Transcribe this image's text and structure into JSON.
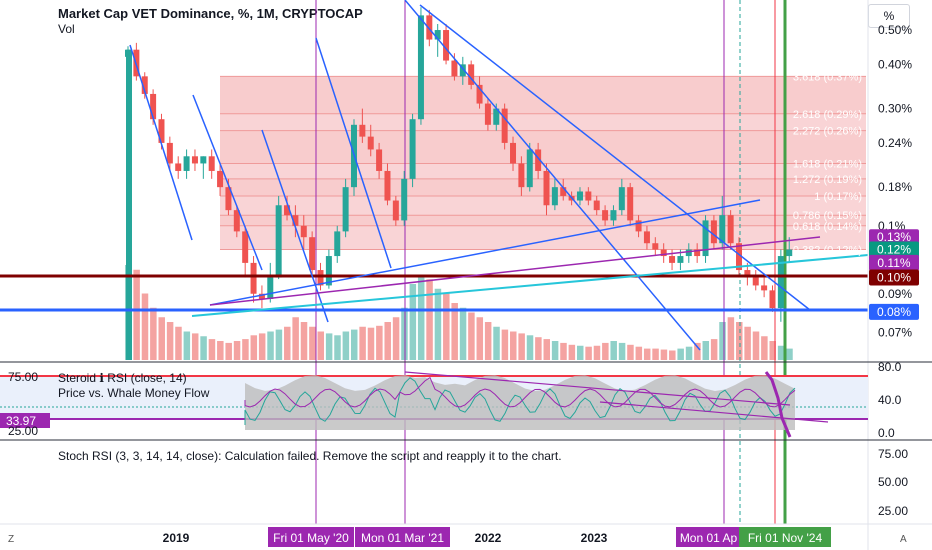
{
  "header": {
    "title": "Market Cap VET Dominance, %, 1M, CRYPTOCAP",
    "vol": "Vol",
    "percent_button": "%"
  },
  "price_axis": {
    "ticks": [
      "0.50%",
      "0.40%",
      "0.30%",
      "0.24%",
      "0.18%",
      "0.1%",
      "0.09%",
      "0.07%"
    ],
    "badges": [
      {
        "label": "0.13%",
        "color": "#9c27b0"
      },
      {
        "label": "0.12%",
        "color": "#089981"
      },
      {
        "label": "0.11%",
        "color": "#9c27b0"
      },
      {
        "label": "0.10%",
        "color": "#7f0000"
      },
      {
        "label": "0.08%",
        "color": "#2962ff"
      }
    ]
  },
  "fib_levels": [
    {
      "label": "3.618 (0.37%)",
      "value": 0.37
    },
    {
      "label": "2.618 (0.29%)",
      "value": 0.29
    },
    {
      "label": "2.272 (0.26%)",
      "value": 0.26
    },
    {
      "label": "1.618 (0.21%)",
      "value": 0.21
    },
    {
      "label": "1.272 (0.19%)",
      "value": 0.19
    },
    {
      "label": "1 (0.17%)",
      "value": 0.17
    },
    {
      "label": "0.786 (0.15%)",
      "value": 0.15
    },
    {
      "label": "0.618 (0.14%)",
      "value": 0.14
    },
    {
      "label": "0.382 (0.12%)",
      "value": 0.12
    }
  ],
  "indicator1": {
    "title": "Steroid ℹ RSI (close, 14)",
    "subtitle": "Price vs. Whale Money Flow",
    "left_labels": [
      "75.00",
      "33.97",
      "25.00"
    ],
    "right_ticks": [
      "80.0",
      "40.0",
      "0.0"
    ]
  },
  "indicator2": {
    "title": "Stoch RSI (3, 3, 14, 14, close): Calculation failed. Remove the script and reapply it to the chart.",
    "right_ticks": [
      "75.00",
      "50.00",
      "25.00"
    ]
  },
  "time_axis": {
    "ticks": [
      "2019",
      "2022",
      "2023"
    ],
    "markers": [
      {
        "label": "Fri 01 May '20",
        "color": "#9c27b0"
      },
      {
        "label": "Mon 01 Mar '21",
        "color": "#9c27b0"
      },
      {
        "label": "Mon 01 Ap",
        "color": "#9c27b0"
      },
      {
        "label": "Fri 01 Nov '24",
        "color": "#43a047"
      }
    ],
    "corner_left": "Z",
    "corner_right": "A"
  },
  "colors": {
    "up": "#26a69a",
    "down": "#ef5350",
    "fib_fill": "#f7c6c8",
    "trend_blue": "#2962ff",
    "trend_cyan": "#26c6da",
    "trend_purple": "#9c27b0",
    "support_red": "#7f0000"
  },
  "chart_data": {
    "type": "candlestick",
    "title": "Market Cap VET Dominance, %, 1M, CRYPTOCAP",
    "y_scale": "log",
    "yrange_pct": [
      0.055,
      0.58
    ],
    "candles": [
      {
        "o": 0.42,
        "h": 0.45,
        "l": 0.4,
        "c": 0.44
      },
      {
        "o": 0.44,
        "h": 0.46,
        "l": 0.36,
        "c": 0.37
      },
      {
        "o": 0.37,
        "h": 0.38,
        "l": 0.32,
        "c": 0.33
      },
      {
        "o": 0.33,
        "h": 0.34,
        "l": 0.27,
        "c": 0.28
      },
      {
        "o": 0.28,
        "h": 0.29,
        "l": 0.23,
        "c": 0.24
      },
      {
        "o": 0.24,
        "h": 0.25,
        "l": 0.2,
        "c": 0.21
      },
      {
        "o": 0.21,
        "h": 0.22,
        "l": 0.19,
        "c": 0.2
      },
      {
        "o": 0.2,
        "h": 0.23,
        "l": 0.19,
        "c": 0.22
      },
      {
        "o": 0.22,
        "h": 0.23,
        "l": 0.2,
        "c": 0.21
      },
      {
        "o": 0.21,
        "h": 0.22,
        "l": 0.19,
        "c": 0.22
      },
      {
        "o": 0.22,
        "h": 0.23,
        "l": 0.19,
        "c": 0.2
      },
      {
        "o": 0.2,
        "h": 0.21,
        "l": 0.17,
        "c": 0.18
      },
      {
        "o": 0.18,
        "h": 0.19,
        "l": 0.15,
        "c": 0.155
      },
      {
        "o": 0.155,
        "h": 0.16,
        "l": 0.13,
        "c": 0.135
      },
      {
        "o": 0.135,
        "h": 0.14,
        "l": 0.1,
        "c": 0.11
      },
      {
        "o": 0.11,
        "h": 0.115,
        "l": 0.085,
        "c": 0.09
      },
      {
        "o": 0.09,
        "h": 0.095,
        "l": 0.082,
        "c": 0.087
      },
      {
        "o": 0.087,
        "h": 0.11,
        "l": 0.085,
        "c": 0.1
      },
      {
        "o": 0.1,
        "h": 0.17,
        "l": 0.099,
        "c": 0.16
      },
      {
        "o": 0.16,
        "h": 0.17,
        "l": 0.145,
        "c": 0.15
      },
      {
        "o": 0.15,
        "h": 0.16,
        "l": 0.13,
        "c": 0.14
      },
      {
        "o": 0.14,
        "h": 0.15,
        "l": 0.12,
        "c": 0.13
      },
      {
        "o": 0.13,
        "h": 0.135,
        "l": 0.1,
        "c": 0.105
      },
      {
        "o": 0.105,
        "h": 0.11,
        "l": 0.092,
        "c": 0.095
      },
      {
        "o": 0.095,
        "h": 0.12,
        "l": 0.093,
        "c": 0.115
      },
      {
        "o": 0.115,
        "h": 0.14,
        "l": 0.11,
        "c": 0.135
      },
      {
        "o": 0.135,
        "h": 0.19,
        "l": 0.13,
        "c": 0.18
      },
      {
        "o": 0.18,
        "h": 0.28,
        "l": 0.17,
        "c": 0.27
      },
      {
        "o": 0.27,
        "h": 0.3,
        "l": 0.24,
        "c": 0.25
      },
      {
        "o": 0.25,
        "h": 0.27,
        "l": 0.22,
        "c": 0.23
      },
      {
        "o": 0.23,
        "h": 0.24,
        "l": 0.19,
        "c": 0.2
      },
      {
        "o": 0.2,
        "h": 0.21,
        "l": 0.16,
        "c": 0.165
      },
      {
        "o": 0.165,
        "h": 0.17,
        "l": 0.14,
        "c": 0.145
      },
      {
        "o": 0.145,
        "h": 0.2,
        "l": 0.14,
        "c": 0.19
      },
      {
        "o": 0.19,
        "h": 0.29,
        "l": 0.18,
        "c": 0.28
      },
      {
        "o": 0.28,
        "h": 0.58,
        "l": 0.27,
        "c": 0.55
      },
      {
        "o": 0.55,
        "h": 0.57,
        "l": 0.45,
        "c": 0.47
      },
      {
        "o": 0.47,
        "h": 0.52,
        "l": 0.42,
        "c": 0.5
      },
      {
        "o": 0.5,
        "h": 0.52,
        "l": 0.4,
        "c": 0.41
      },
      {
        "o": 0.41,
        "h": 0.43,
        "l": 0.36,
        "c": 0.37
      },
      {
        "o": 0.37,
        "h": 0.42,
        "l": 0.35,
        "c": 0.4
      },
      {
        "o": 0.4,
        "h": 0.41,
        "l": 0.34,
        "c": 0.35
      },
      {
        "o": 0.35,
        "h": 0.37,
        "l": 0.3,
        "c": 0.31
      },
      {
        "o": 0.31,
        "h": 0.32,
        "l": 0.26,
        "c": 0.27
      },
      {
        "o": 0.27,
        "h": 0.31,
        "l": 0.26,
        "c": 0.3
      },
      {
        "o": 0.3,
        "h": 0.31,
        "l": 0.23,
        "c": 0.24
      },
      {
        "o": 0.24,
        "h": 0.25,
        "l": 0.2,
        "c": 0.21
      },
      {
        "o": 0.21,
        "h": 0.22,
        "l": 0.17,
        "c": 0.18
      },
      {
        "o": 0.18,
        "h": 0.24,
        "l": 0.175,
        "c": 0.23
      },
      {
        "o": 0.23,
        "h": 0.24,
        "l": 0.19,
        "c": 0.2
      },
      {
        "o": 0.2,
        "h": 0.21,
        "l": 0.15,
        "c": 0.16
      },
      {
        "o": 0.16,
        "h": 0.19,
        "l": 0.155,
        "c": 0.18
      },
      {
        "o": 0.18,
        "h": 0.19,
        "l": 0.165,
        "c": 0.17
      },
      {
        "o": 0.17,
        "h": 0.175,
        "l": 0.16,
        "c": 0.165
      },
      {
        "o": 0.165,
        "h": 0.18,
        "l": 0.16,
        "c": 0.175
      },
      {
        "o": 0.175,
        "h": 0.18,
        "l": 0.16,
        "c": 0.165
      },
      {
        "o": 0.165,
        "h": 0.17,
        "l": 0.15,
        "c": 0.155
      },
      {
        "o": 0.155,
        "h": 0.16,
        "l": 0.14,
        "c": 0.145
      },
      {
        "o": 0.145,
        "h": 0.16,
        "l": 0.14,
        "c": 0.155
      },
      {
        "o": 0.155,
        "h": 0.19,
        "l": 0.15,
        "c": 0.18
      },
      {
        "o": 0.18,
        "h": 0.185,
        "l": 0.14,
        "c": 0.145
      },
      {
        "o": 0.145,
        "h": 0.15,
        "l": 0.13,
        "c": 0.135
      },
      {
        "o": 0.135,
        "h": 0.14,
        "l": 0.12,
        "c": 0.125
      },
      {
        "o": 0.125,
        "h": 0.13,
        "l": 0.115,
        "c": 0.12
      },
      {
        "o": 0.12,
        "h": 0.125,
        "l": 0.11,
        "c": 0.115
      },
      {
        "o": 0.115,
        "h": 0.12,
        "l": 0.105,
        "c": 0.11
      },
      {
        "o": 0.11,
        "h": 0.12,
        "l": 0.105,
        "c": 0.115
      },
      {
        "o": 0.115,
        "h": 0.125,
        "l": 0.11,
        "c": 0.12
      },
      {
        "o": 0.12,
        "h": 0.125,
        "l": 0.11,
        "c": 0.115
      },
      {
        "o": 0.115,
        "h": 0.15,
        "l": 0.11,
        "c": 0.145
      },
      {
        "o": 0.145,
        "h": 0.15,
        "l": 0.12,
        "c": 0.125
      },
      {
        "o": 0.125,
        "h": 0.17,
        "l": 0.12,
        "c": 0.15
      },
      {
        "o": 0.15,
        "h": 0.155,
        "l": 0.12,
        "c": 0.125
      },
      {
        "o": 0.125,
        "h": 0.13,
        "l": 0.1,
        "c": 0.105
      },
      {
        "o": 0.105,
        "h": 0.11,
        "l": 0.095,
        "c": 0.1
      },
      {
        "o": 0.1,
        "h": 0.105,
        "l": 0.092,
        "c": 0.095
      },
      {
        "o": 0.095,
        "h": 0.1,
        "l": 0.088,
        "c": 0.092
      },
      {
        "o": 0.092,
        "h": 0.095,
        "l": 0.08,
        "c": 0.082
      },
      {
        "o": 0.082,
        "h": 0.12,
        "l": 0.075,
        "c": 0.115
      },
      {
        "o": 0.115,
        "h": 0.13,
        "l": 0.11,
        "c": 0.12
      }
    ],
    "volume": [
      1.0,
      0.95,
      0.7,
      0.55,
      0.45,
      0.4,
      0.35,
      0.3,
      0.28,
      0.25,
      0.22,
      0.2,
      0.18,
      0.2,
      0.22,
      0.26,
      0.28,
      0.3,
      0.32,
      0.35,
      0.45,
      0.4,
      0.35,
      0.3,
      0.28,
      0.26,
      0.3,
      0.32,
      0.35,
      0.34,
      0.36,
      0.4,
      0.45,
      0.55,
      0.8,
      0.9,
      0.85,
      0.75,
      0.7,
      0.6,
      0.55,
      0.5,
      0.45,
      0.4,
      0.35,
      0.32,
      0.3,
      0.28,
      0.26,
      0.24,
      0.22,
      0.2,
      0.18,
      0.16,
      0.15,
      0.14,
      0.15,
      0.18,
      0.2,
      0.18,
      0.16,
      0.14,
      0.12,
      0.12,
      0.11,
      0.1,
      0.12,
      0.14,
      0.18,
      0.2,
      0.22,
      0.4,
      0.45,
      0.4,
      0.35,
      0.3,
      0.25,
      0.2,
      0.15,
      0.12
    ]
  }
}
